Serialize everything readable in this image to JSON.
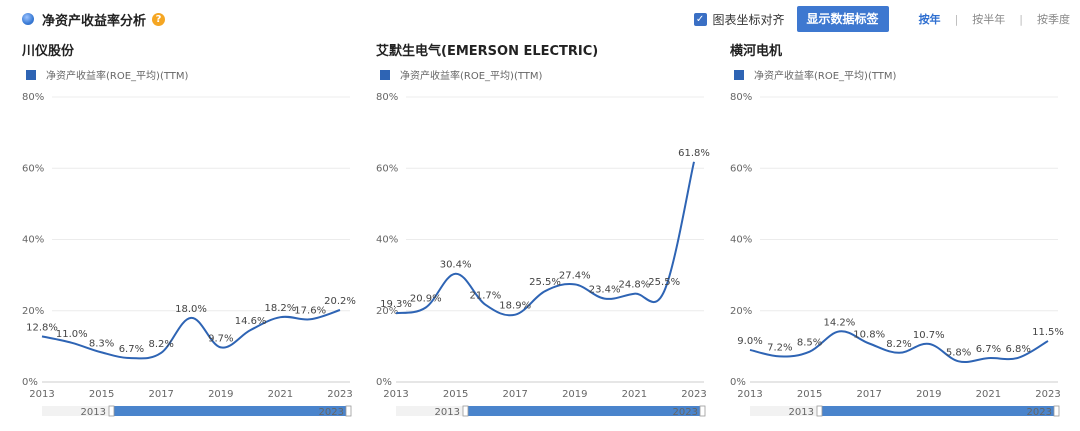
{
  "header": {
    "title": "净资产收益率分析",
    "help_icon": "?",
    "align_checkbox_label": "图表坐标对齐",
    "show_labels_button": "显示数据标签",
    "periods": [
      "按年",
      "按半年",
      "按季度"
    ],
    "active_period": "按年"
  },
  "colors": {
    "series": "#2e64b4",
    "accent": "#3e78d0",
    "slider_fill": "#4a84cc"
  },
  "chart_data": [
    {
      "type": "line",
      "title": "川仪股份",
      "series": [
        {
          "name": "净资产收益率(ROE_平均)(TTM)",
          "x": [
            2013,
            2014,
            2015,
            2016,
            2017,
            2018,
            2019,
            2020,
            2021,
            2022,
            2023
          ],
          "values": [
            12.8,
            11.0,
            8.3,
            6.7,
            8.2,
            18.0,
            9.7,
            14.6,
            18.2,
            17.6,
            20.2
          ],
          "labels": [
            "12.8%",
            "11.0%",
            "8.3%",
            "6.7%",
            "8.2%",
            "18.0%",
            "9.7%",
            "14.6%",
            "18.2%",
            "17.6%",
            "20.2%"
          ]
        }
      ],
      "y_ticks": [
        "0%",
        "20%",
        "40%",
        "60%",
        "80%"
      ],
      "x_ticks": [
        "2013",
        "2015",
        "2017",
        "2019",
        "2021",
        "2023"
      ],
      "ylim": [
        0,
        80
      ],
      "slider": {
        "start": "2013",
        "end": "2023"
      }
    },
    {
      "type": "line",
      "title": "艾默生电气(EMERSON ELECTRIC)",
      "series": [
        {
          "name": "净资产收益率(ROE_平均)(TTM)",
          "x": [
            2013,
            2014,
            2015,
            2016,
            2017,
            2018,
            2019,
            2020,
            2021,
            2022,
            2023
          ],
          "values": [
            19.3,
            20.9,
            30.4,
            21.7,
            18.9,
            25.5,
            27.4,
            23.4,
            24.8,
            25.5,
            61.8
          ],
          "labels": [
            "19.3%",
            "20.9%",
            "30.4%",
            "21.7%",
            "18.9%",
            "25.5%",
            "27.4%",
            "23.4%",
            "24.8%",
            "25.5%",
            "61.8%"
          ]
        }
      ],
      "y_ticks": [
        "0%",
        "20%",
        "40%",
        "60%",
        "80%"
      ],
      "x_ticks": [
        "2013",
        "2015",
        "2017",
        "2019",
        "2021",
        "2023"
      ],
      "ylim": [
        0,
        80
      ],
      "slider": {
        "start": "2013",
        "end": "2023"
      }
    },
    {
      "type": "line",
      "title": "横河电机",
      "series": [
        {
          "name": "净资产收益率(ROE_平均)(TTM)",
          "x": [
            2013,
            2014,
            2015,
            2016,
            2017,
            2018,
            2019,
            2020,
            2021,
            2022,
            2023
          ],
          "values": [
            9.0,
            7.2,
            8.5,
            14.2,
            10.8,
            8.2,
            10.7,
            5.8,
            6.7,
            6.8,
            11.5
          ],
          "labels": [
            "9.0%",
            "7.2%",
            "8.5%",
            "14.2%",
            "10.8%",
            "8.2%",
            "10.7%",
            "5.8%",
            "6.7%",
            "6.8%",
            "11.5%"
          ]
        }
      ],
      "y_ticks": [
        "0%",
        "20%",
        "40%",
        "60%",
        "80%"
      ],
      "x_ticks": [
        "2013",
        "2015",
        "2017",
        "2019",
        "2021",
        "2023"
      ],
      "ylim": [
        0,
        80
      ],
      "slider": {
        "start": "2013",
        "end": "2023"
      }
    }
  ]
}
